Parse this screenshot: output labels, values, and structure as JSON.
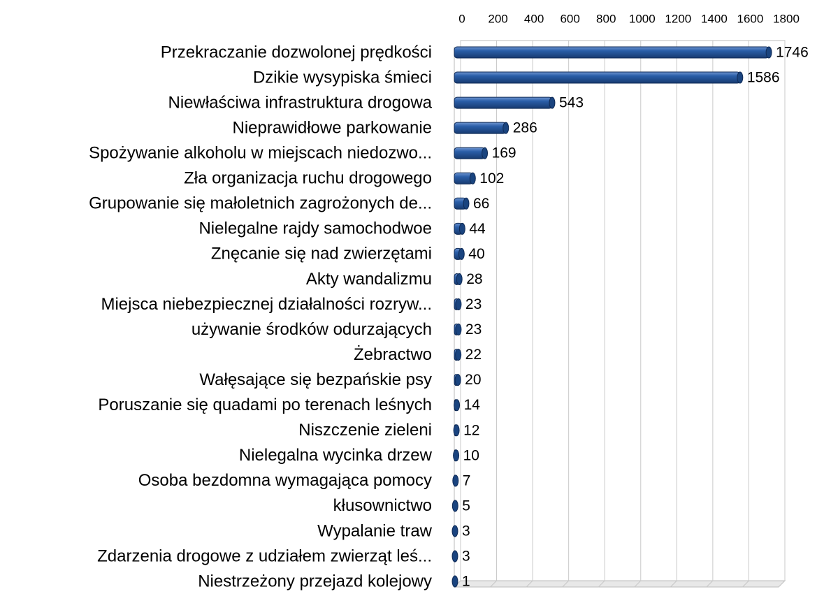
{
  "chart_data": {
    "type": "bar",
    "orientation": "horizontal",
    "categories": [
      "Przekraczanie dozwolonej prędkości",
      "Dzikie wysypiska śmieci",
      "Niewłaściwa infrastruktura drogowa",
      "Nieprawidłowe parkowanie",
      "Spożywanie alkoholu w miejscach niedozwo...",
      "Zła organizacja ruchu drogowego",
      "Grupowanie się małoletnich zagrożonych de...",
      "Nielegalne rajdy samochodwoe",
      "Znęcanie się nad zwierzętami",
      "Akty wandalizmu",
      "Miejsca niebezpiecznej działalności rozryw...",
      "używanie środków odurzających",
      "Żebractwo",
      "Wałęsające się bezpańskie psy",
      "Poruszanie się quadami po terenach leśnych",
      "Niszczenie zieleni",
      "Nielegalna wycinka drzew",
      "Osoba bezdomna wymagająca pomocy",
      "kłusownictwo",
      "Wypalanie traw",
      "Zdarzenia drogowe z udziałem zwierząt leś...",
      "Niestrzeżony przejazd kolejowy"
    ],
    "values": [
      1746,
      1586,
      543,
      286,
      169,
      102,
      66,
      44,
      40,
      28,
      23,
      23,
      22,
      20,
      14,
      12,
      10,
      7,
      5,
      3,
      3,
      1
    ],
    "color": "#2a5ea8",
    "xlim": [
      0,
      1800
    ],
    "xticks": [
      0,
      200,
      400,
      600,
      800,
      1000,
      1200,
      1400,
      1600,
      1800
    ],
    "grid": true
  }
}
